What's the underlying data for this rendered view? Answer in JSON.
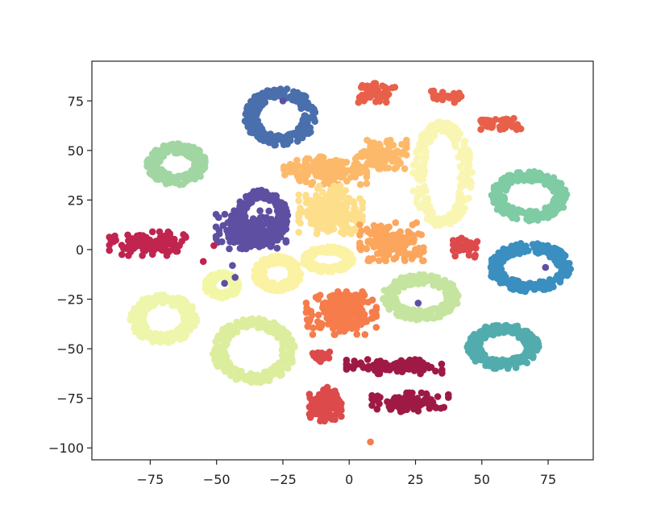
{
  "chart_data": {
    "type": "scatter",
    "title": "",
    "xlabel": "",
    "ylabel": "",
    "xlim": [
      -97,
      92
    ],
    "ylim": [
      -106,
      95
    ],
    "xticks": [
      -75,
      -50,
      -25,
      0,
      25,
      50,
      75
    ],
    "yticks": [
      -100,
      -75,
      -50,
      -25,
      0,
      25,
      50,
      75
    ],
    "xtick_labels": [
      "−75",
      "−50",
      "−25",
      "0",
      "25",
      "50",
      "75"
    ],
    "ytick_labels": [
      "−100",
      "−75",
      "−50",
      "−25",
      "0",
      "25",
      "50",
      "75"
    ],
    "grid": false,
    "legend": "none",
    "clusters": [
      {
        "shape": "ring",
        "color": "#4a6fad",
        "center": [
          -26,
          67
        ],
        "radius": [
          11,
          12
        ],
        "thickness": 5
      },
      {
        "shape": "blob",
        "color": "#e8604a",
        "center": [
          10,
          79
        ],
        "spread": [
          6,
          4
        ]
      },
      {
        "shape": "blob",
        "color": "#e8604a",
        "center": [
          37,
          77
        ],
        "spread": [
          5,
          2.5
        ]
      },
      {
        "shape": "blob",
        "color": "#e8604a",
        "center": [
          60,
          63
        ],
        "spread": [
          4,
          3
        ]
      },
      {
        "shape": "blob",
        "color": "#e8604a",
        "center": [
          52,
          63
        ],
        "spread": [
          2,
          2
        ]
      },
      {
        "shape": "ring",
        "color": "#a1d6a2",
        "center": [
          -65,
          43
        ],
        "radius": [
          9,
          8
        ],
        "thickness": 5
      },
      {
        "shape": "blob",
        "color": "#fdb96a",
        "center": [
          -9,
          40
        ],
        "spread": [
          13,
          6
        ]
      },
      {
        "shape": "blob",
        "color": "#fdb96a",
        "center": [
          12,
          48
        ],
        "spread": [
          8,
          6
        ]
      },
      {
        "shape": "ring",
        "color": "#f9f6b4",
        "center": [
          35,
          38
        ],
        "radius": [
          9,
          24
        ],
        "thickness": 5
      },
      {
        "shape": "ring",
        "color": "#7ecba4",
        "center": [
          68,
          27
        ],
        "radius": [
          12,
          10
        ],
        "thickness": 5
      },
      {
        "shape": "ring",
        "color": "#5e4fa2",
        "center": [
          -33,
          16
        ],
        "radius": [
          8,
          12
        ],
        "thickness": 4
      },
      {
        "shape": "blob",
        "color": "#5e4fa2",
        "center": [
          -37,
          10
        ],
        "spread": [
          11,
          8
        ]
      },
      {
        "shape": "blob",
        "color": "#fddf8b",
        "center": [
          -7,
          20
        ],
        "spread": [
          10,
          10
        ]
      },
      {
        "shape": "blob",
        "color": "#c0244f",
        "center": [
          -76,
          3
        ],
        "spread": [
          12,
          5
        ]
      },
      {
        "shape": "blob",
        "color": "#fca55d",
        "center": [
          16,
          4
        ],
        "spread": [
          10,
          8
        ]
      },
      {
        "shape": "blob",
        "color": "#dc4a4c",
        "center": [
          44,
          1
        ],
        "spread": [
          4,
          4
        ]
      },
      {
        "shape": "ring",
        "color": "#3a8fc0",
        "center": [
          68,
          -9
        ],
        "radius": [
          13,
          10
        ],
        "thickness": 5
      },
      {
        "shape": "ring",
        "color": "#fcf2a4",
        "center": [
          -8,
          -5
        ],
        "radius": [
          8,
          5
        ],
        "thickness": 3
      },
      {
        "shape": "ring",
        "color": "#fcf2a4",
        "center": [
          -27,
          -12
        ],
        "radius": [
          7,
          7
        ],
        "thickness": 4
      },
      {
        "shape": "ring",
        "color": "#f2f7a6",
        "center": [
          -48,
          -18
        ],
        "radius": [
          5,
          5
        ],
        "thickness": 3
      },
      {
        "shape": "ring",
        "color": "#c5e49f",
        "center": [
          27,
          -24
        ],
        "radius": [
          12,
          9
        ],
        "thickness": 5
      },
      {
        "shape": "blob",
        "color": "#f67c4b",
        "center": [
          -3,
          -32
        ],
        "spread": [
          11,
          9
        ]
      },
      {
        "shape": "ring",
        "color": "#eef6ab",
        "center": [
          -70,
          -35
        ],
        "radius": [
          10,
          10
        ],
        "thickness": 5
      },
      {
        "shape": "ring",
        "color": "#dcee9d",
        "center": [
          -36,
          -51
        ],
        "radius": [
          13,
          14
        ],
        "thickness": 5
      },
      {
        "shape": "ring",
        "color": "#52acad",
        "center": [
          58,
          -49
        ],
        "radius": [
          11,
          9
        ],
        "thickness": 5
      },
      {
        "shape": "blob",
        "color": "#dc4a4c",
        "center": [
          -11,
          -54
        ],
        "spread": [
          3,
          2
        ]
      },
      {
        "shape": "blob",
        "color": "#dc4a4c",
        "center": [
          -9,
          -79
        ],
        "spread": [
          5,
          8
        ]
      },
      {
        "shape": "blob",
        "color": "#9e1a45",
        "center": [
          17,
          -59
        ],
        "spread": [
          15,
          3
        ]
      },
      {
        "shape": "blob",
        "color": "#9e1a45",
        "center": [
          23,
          -77
        ],
        "spread": [
          12,
          4
        ]
      }
    ],
    "singletons": [
      {
        "x": -25,
        "y": 75,
        "color": "#5e4fa2"
      },
      {
        "x": 26,
        "y": -27,
        "color": "#5e4fa2"
      },
      {
        "x": -47,
        "y": -17,
        "color": "#5e4fa2"
      },
      {
        "x": -43,
        "y": -14,
        "color": "#5e4fa2"
      },
      {
        "x": -44,
        "y": -8,
        "color": "#5e4fa2"
      },
      {
        "x": 8,
        "y": -97,
        "color": "#f67c4b"
      },
      {
        "x": 74,
        "y": -9,
        "color": "#5e4fa2"
      },
      {
        "x": -51,
        "y": 2,
        "color": "#c0244f"
      },
      {
        "x": -55,
        "y": -6,
        "color": "#c0244f"
      }
    ]
  }
}
